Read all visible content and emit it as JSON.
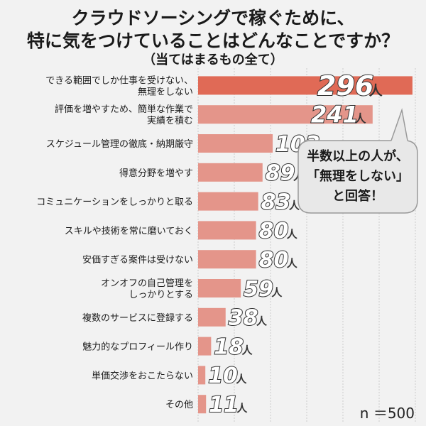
{
  "header": {
    "title_line1": "クラウドソーシングで稼ぐために、",
    "title_line2": "特に気をつけていることはどんなことですか？",
    "subtitle": "（当てはまるもの全て）"
  },
  "sample_size": "n ＝500",
  "callout": {
    "line1": "半数以上の人が、",
    "line2": "「無理をしない」",
    "line3": "と回答！"
  },
  "colors": {
    "top_bar": "#e06a56",
    "bar": "#e4958a",
    "background": "#f2f2f2",
    "value_fill": "#ffffff",
    "value_stroke": "#333333",
    "callout_bg": "#e8e8e8"
  },
  "chart_data": {
    "type": "bar",
    "orientation": "horizontal",
    "unit": "人",
    "categories": [
      [
        "できる範囲でしか仕事を受けない、",
        "無理をしない"
      ],
      [
        "評価を増やすため、簡単な作業で",
        "実績を積む"
      ],
      [
        "スケジュール管理の徹底・納期厳守"
      ],
      [
        "得意分野を増やす"
      ],
      [
        "コミュニケーションをしっかりと取る"
      ],
      [
        "スキルや技術を常に磨いておく"
      ],
      [
        "安価すぎる案件は受けない"
      ],
      [
        "オンオフの自己管理を",
        "しっかりとする"
      ],
      [
        "複数のサービスに登録する"
      ],
      [
        "魅力的なプロフィール作り"
      ],
      [
        "単価交渉をおこたらない"
      ],
      [
        "その他"
      ]
    ],
    "values": [
      296,
      241,
      103,
      89,
      83,
      80,
      80,
      59,
      38,
      18,
      10,
      11
    ],
    "highlight_index": 0,
    "xlim": [
      0,
      300
    ],
    "grid": true
  }
}
